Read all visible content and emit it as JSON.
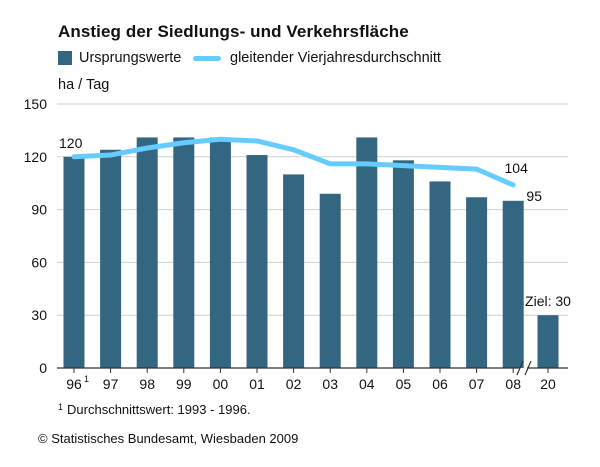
{
  "title": "Anstieg der Siedlungs- und Verkehrsfläche",
  "legend": {
    "bar_label": "Ursprungswerte",
    "line_label": "gleitender Vierjahresdurchschnitt"
  },
  "unit": "ha / Tag",
  "footnote": {
    "marker": "1",
    "text": "Durchschnittswert: 1993 - 1996."
  },
  "copyright": "© Statistisches Bundesamt, Wiesbaden 2009",
  "colors": {
    "bar": "#336681",
    "line": "#66ccff",
    "grid": "#cfcfcf",
    "axis": "#333333"
  },
  "chart_data": {
    "type": "bar",
    "title": "Anstieg der Siedlungs- und Verkehrsfläche",
    "ylabel": "ha / Tag",
    "xlabel": "",
    "ylim": [
      0,
      150
    ],
    "yticks": [
      0,
      30,
      60,
      90,
      120,
      150
    ],
    "grid": true,
    "legend_position": "top-left",
    "axis_break_between": [
      "08",
      "20"
    ],
    "categories": [
      "96",
      "97",
      "98",
      "99",
      "00",
      "01",
      "02",
      "03",
      "04",
      "05",
      "06",
      "07",
      "08",
      "20"
    ],
    "category_footnotes": {
      "96": "1"
    },
    "series": [
      {
        "name": "Ursprungswerte",
        "type": "bar",
        "values": [
          120,
          124,
          131,
          131,
          131,
          121,
          110,
          99,
          131,
          118,
          106,
          97,
          95,
          30
        ],
        "labels": {
          "08": "95",
          "20": "Ziel: 30"
        }
      },
      {
        "name": "gleitender Vierjahresdurchschnitt",
        "type": "line",
        "values": [
          120,
          121,
          125,
          128,
          130,
          129,
          124,
          116,
          116,
          115,
          114,
          113,
          104,
          null
        ],
        "labels": {
          "96": "120",
          "08": "104"
        }
      }
    ]
  }
}
